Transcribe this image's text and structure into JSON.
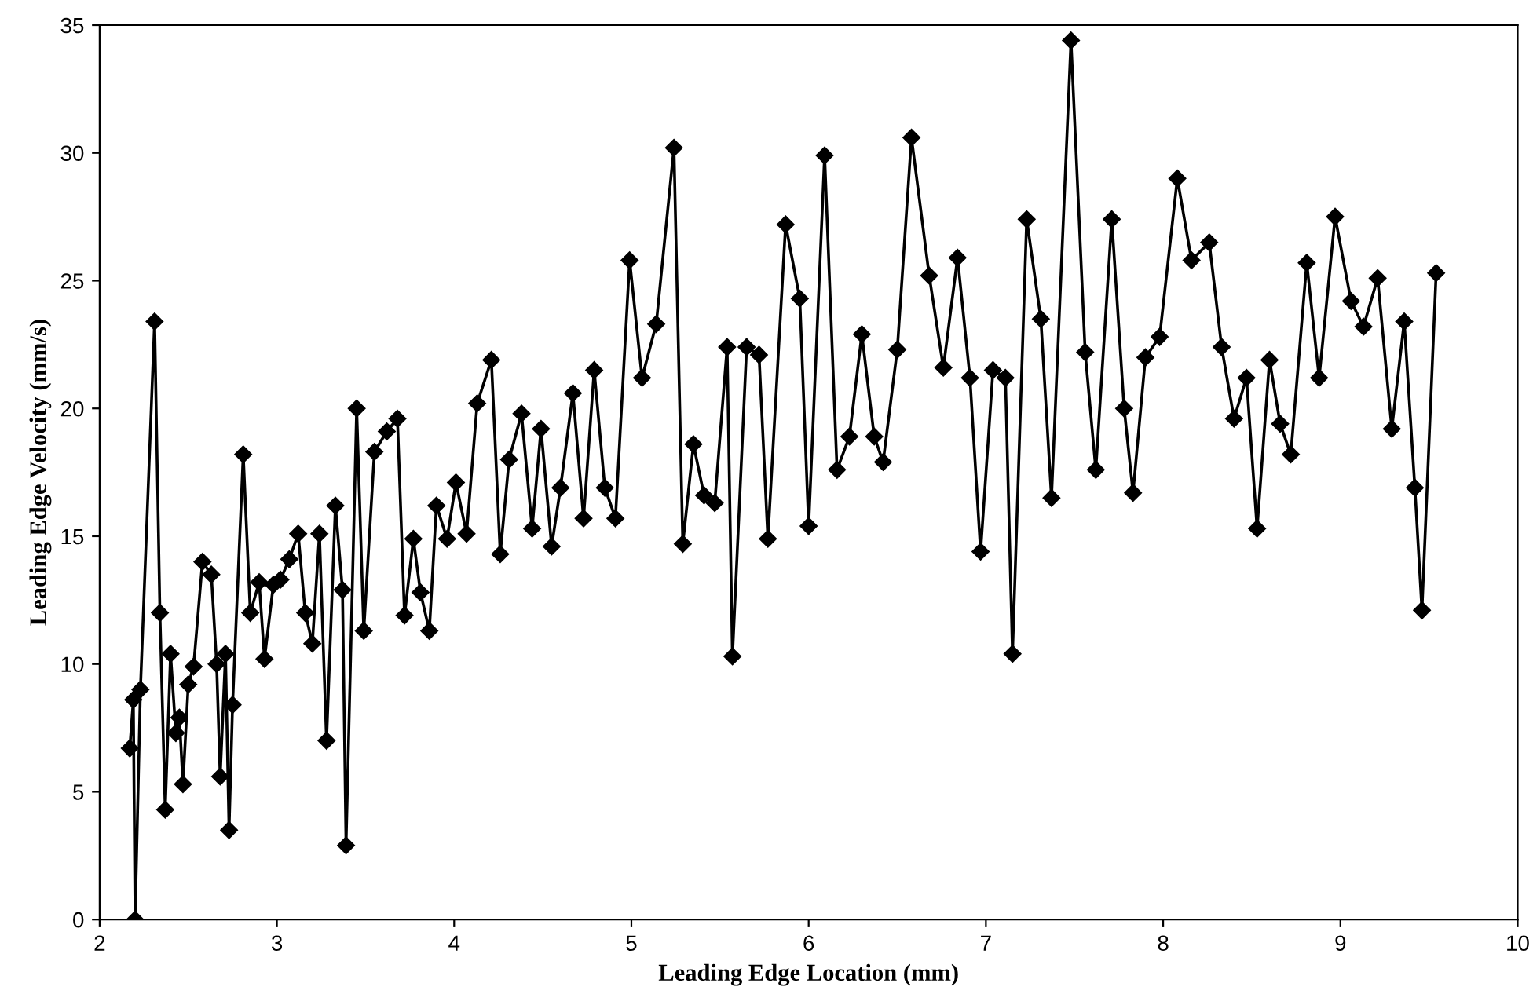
{
  "chart_data": {
    "type": "line",
    "xlabel": "Leading Edge Location (mm)",
    "ylabel": "Leading Edge Velocity (mm/s)",
    "xlim": [
      2,
      10
    ],
    "xticks": [
      2,
      3,
      4,
      5,
      6,
      7,
      8,
      9,
      10
    ],
    "ylim": [
      0,
      35
    ],
    "yticks": [
      0,
      5,
      10,
      15,
      20,
      25,
      30,
      35
    ],
    "grid": false,
    "marker": "diamond",
    "line_style": "solid",
    "series": [
      {
        "color": "#000000",
        "x": [
          2.17,
          2.19,
          2.2,
          2.23,
          2.31,
          2.34,
          2.37,
          2.4,
          2.43,
          2.45,
          2.47,
          2.5,
          2.53,
          2.58,
          2.63,
          2.66,
          2.68,
          2.71,
          2.73,
          2.75,
          2.81,
          2.85,
          2.9,
          2.93,
          2.98,
          3.02,
          3.07,
          3.12,
          3.16,
          3.2,
          3.24,
          3.28,
          3.33,
          3.37,
          3.39,
          3.45,
          3.49,
          3.55,
          3.62,
          3.68,
          3.72,
          3.77,
          3.81,
          3.86,
          3.9,
          3.96,
          4.01,
          4.07,
          4.13,
          4.21,
          4.26,
          4.31,
          4.38,
          4.44,
          4.49,
          4.55,
          4.6,
          4.67,
          4.73,
          4.79,
          4.85,
          4.91,
          4.99,
          5.06,
          5.14,
          5.24,
          5.29,
          5.35,
          5.41,
          5.47,
          5.54,
          5.57,
          5.65,
          5.72,
          5.77,
          5.87,
          5.95,
          6.0,
          6.09,
          6.16,
          6.23,
          6.3,
          6.37,
          6.42,
          6.5,
          6.58,
          6.68,
          6.76,
          6.84,
          6.91,
          6.97,
          7.04,
          7.11,
          7.15,
          7.23,
          7.31,
          7.37,
          7.48,
          7.56,
          7.62,
          7.71,
          7.78,
          7.83,
          7.9,
          7.98,
          8.08,
          8.16,
          8.26,
          8.33,
          8.4,
          8.47,
          8.53,
          8.6,
          8.66,
          8.72,
          8.81,
          8.88,
          8.97,
          9.06,
          9.13,
          9.21,
          9.29,
          9.36,
          9.42,
          9.46,
          9.54
        ],
        "values": [
          6.7,
          8.6,
          0,
          9.0,
          23.4,
          12.0,
          4.3,
          10.4,
          7.3,
          7.9,
          5.3,
          9.2,
          9.9,
          14.0,
          13.5,
          10.0,
          5.6,
          10.4,
          3.5,
          8.4,
          18.2,
          12.0,
          13.2,
          10.2,
          13.1,
          13.3,
          14.1,
          15.1,
          12.0,
          10.8,
          15.1,
          7.0,
          16.2,
          12.9,
          2.9,
          20.0,
          11.3,
          18.3,
          19.1,
          19.6,
          11.9,
          14.9,
          12.8,
          11.3,
          16.2,
          14.9,
          17.1,
          15.1,
          20.2,
          21.9,
          14.3,
          18.0,
          19.8,
          15.3,
          19.2,
          14.6,
          16.9,
          20.6,
          15.7,
          21.5,
          16.9,
          15.7,
          25.8,
          21.2,
          23.3,
          30.2,
          14.7,
          18.6,
          16.6,
          16.3,
          22.4,
          10.3,
          22.4,
          22.1,
          14.9,
          27.2,
          24.3,
          15.4,
          29.9,
          17.6,
          18.9,
          22.9,
          18.9,
          17.9,
          22.3,
          30.6,
          25.2,
          21.6,
          25.9,
          21.2,
          14.4,
          21.5,
          21.2,
          10.4,
          27.4,
          23.5,
          16.5,
          34.4,
          22.2,
          17.6,
          27.4,
          20.0,
          16.7,
          22.0,
          22.8,
          29.0,
          25.8,
          26.5,
          22.4,
          19.6,
          21.2,
          15.3,
          21.9,
          19.4,
          18.2,
          25.7,
          21.2,
          27.5,
          24.2,
          23.2,
          25.1,
          19.2,
          23.4,
          16.9,
          12.1,
          25.3
        ]
      }
    ]
  }
}
